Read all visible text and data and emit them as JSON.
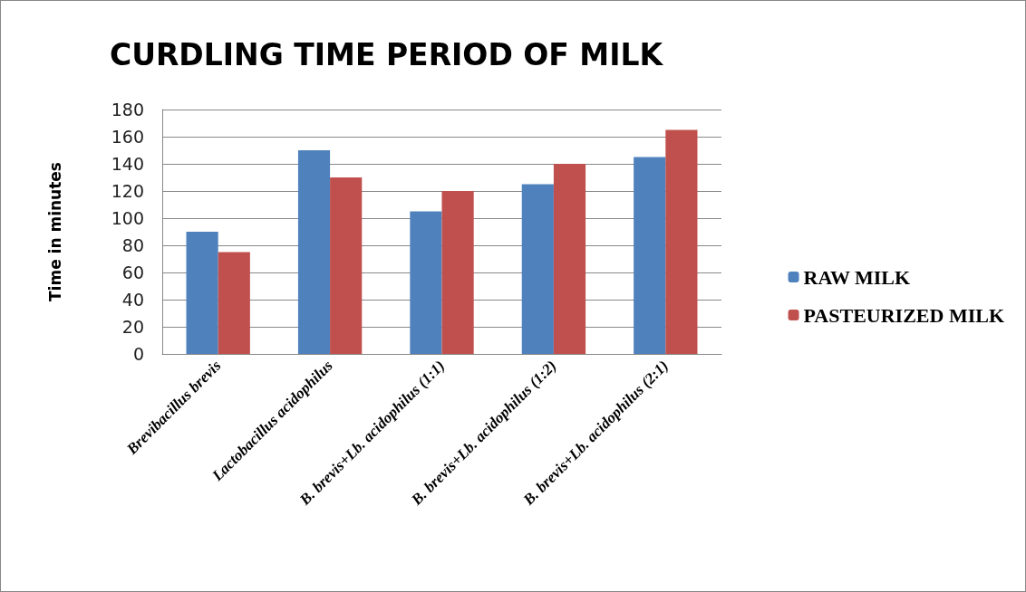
{
  "chart_data": {
    "type": "bar",
    "title": "CURDLING TIME PERIOD OF MILK",
    "ylabel": "Time in minutes",
    "categories": [
      "Brevibacillus brevis",
      "Lactobacillus acidophilus",
      "B. brevis+Lb. acidophilus (1:1)",
      "B. brevis+Lb. acidophilus (1:2)",
      "B. brevis+Lb. acidophilus (2:1)"
    ],
    "series": [
      {
        "name": "RAW MILK",
        "color": "#4f81bd",
        "values": [
          90,
          150,
          105,
          125,
          145
        ]
      },
      {
        "name": "PASTEURIZED MILK",
        "color": "#c0504d",
        "values": [
          75,
          130,
          120,
          140,
          165
        ]
      }
    ],
    "ylim": [
      0,
      180
    ],
    "yticks": [
      0,
      20,
      40,
      60,
      80,
      100,
      120,
      140,
      160,
      180
    ],
    "grid": "y",
    "legend": "right"
  }
}
